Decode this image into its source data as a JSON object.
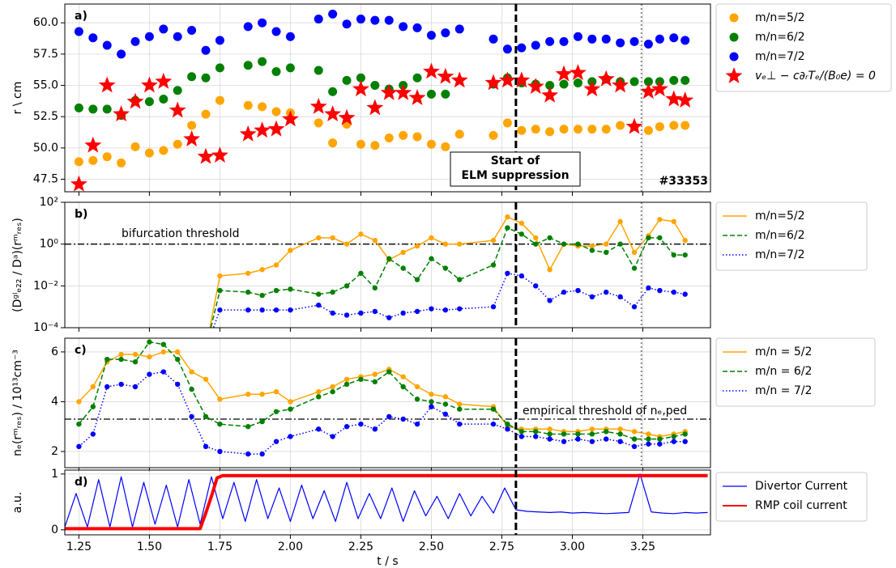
{
  "chart_data": [
    {
      "type": "scatter",
      "label": "a)",
      "ylabel": "r \\ cm",
      "xlim": [
        1.2,
        3.49
      ],
      "xticks": [
        1.25,
        {
          "value": 1.5,
          "label": "1.50"
        },
        1.75,
        {
          "value": 2,
          "label": "2.00"
        },
        2.25,
        {
          "value": 2.5,
          "label": "2.50"
        },
        2.75,
        {
          "value": 3,
          "label": "3.00"
        },
        3.25
      ],
      "ylim": [
        46.5,
        61.5
      ],
      "yticks": [
        47.5,
        {
          "value": 50,
          "label": "50.0"
        },
        52.5,
        {
          "value": 55,
          "label": "55.0"
        },
        57.5,
        {
          "value": 60,
          "label": "60.0"
        }
      ],
      "grid": true,
      "x": [
        1.25,
        1.3,
        1.35,
        1.4,
        1.45,
        1.5,
        1.55,
        1.6,
        1.65,
        1.7,
        1.75,
        1.85,
        1.9,
        1.95,
        2,
        2.1,
        2.15,
        2.2,
        2.25,
        2.3,
        2.35,
        2.4,
        2.45,
        2.5,
        2.55,
        2.6,
        2.72,
        2.77,
        2.82,
        2.87,
        2.92,
        2.97,
        3.02,
        3.07,
        3.12,
        3.17,
        3.22,
        3.27,
        3.31,
        3.36,
        3.4
      ],
      "series": [
        {
          "name": "m/n=5/2",
          "color": "#ffa500",
          "marker": "circle",
          "values": [
            48.9,
            49.0,
            49.3,
            48.8,
            50.1,
            49.6,
            49.8,
            50.3,
            51.8,
            52.7,
            53.8,
            53.4,
            53.3,
            52.9,
            52.8,
            52.0,
            50.4,
            51.9,
            50.3,
            50.2,
            50.8,
            51.0,
            50.9,
            50.3,
            50.1,
            51.1,
            51.0,
            52.0,
            51.4,
            51.5,
            51.3,
            51.5,
            51.5,
            51.5,
            51.5,
            51.8,
            51.7,
            51.4,
            51.7,
            51.8,
            51.8
          ]
        },
        {
          "name": "m/n=6/2",
          "color": "#008000",
          "marker": "circle",
          "values": [
            53.2,
            53.1,
            53.1,
            52.6,
            53.8,
            53.7,
            53.9,
            54.6,
            55.7,
            55.6,
            56.4,
            56.6,
            56.9,
            56.1,
            56.4,
            56.2,
            54.5,
            55.4,
            55.6,
            55.0,
            54.7,
            55.0,
            55.6,
            54.3,
            54.3,
            null,
            55.1,
            55.6,
            55.2,
            55.1,
            55.0,
            55.1,
            55.2,
            55.3,
            55.5,
            55.3,
            55.3,
            55.3,
            55.3,
            55.4,
            55.4
          ]
        },
        {
          "name": "m/n=7/2",
          "color": "#0000ff",
          "marker": "circle",
          "values": [
            59.3,
            58.8,
            58.2,
            57.5,
            58.5,
            58.9,
            59.5,
            58.9,
            59.4,
            57.8,
            58.6,
            59.7,
            60.0,
            59.3,
            58.9,
            60.3,
            60.7,
            59.9,
            60.3,
            60.2,
            60.2,
            59.7,
            59.6,
            59.0,
            59.2,
            59.5,
            58.7,
            57.9,
            58.0,
            58.2,
            58.5,
            58.5,
            58.9,
            58.7,
            58.7,
            58.4,
            58.5,
            58.3,
            58.7,
            58.8,
            58.6
          ]
        },
        {
          "name": "vₑ⊥ − c∂ᵣTₑ/(B₀e) = 0",
          "color": "#ff0000",
          "marker": "star",
          "values": [
            47.1,
            50.2,
            55.0,
            52.7,
            53.7,
            55.0,
            55.3,
            53.0,
            50.7,
            49.3,
            49.4,
            51.1,
            51.4,
            51.5,
            52.3,
            53.3,
            52.7,
            52.4,
            54.7,
            53.2,
            54.4,
            54.4,
            54.0,
            56.1,
            55.7,
            55.4,
            55.2,
            55.4,
            55.4,
            54.9,
            54.2,
            55.9,
            56.0,
            54.7,
            55.5,
            55.0,
            51.7,
            54.5,
            54.7,
            53.9,
            53.8
          ]
        }
      ],
      "vlines": [
        {
          "x": 2.8,
          "style": "dashed",
          "color": "#000000"
        },
        {
          "x": 3.245,
          "style": "dotted",
          "color": "#808080"
        }
      ],
      "box_text": [
        "Start of",
        "ELM suppression"
      ],
      "shot": "#33353"
    },
    {
      "type": "line",
      "label": "b)",
      "ylabel": "(Dᵍˡₑ₂₂ / Dᵃ)(rᵐᵣₑₛ)",
      "log": true,
      "xlim": [
        1.2,
        3.49
      ],
      "xticks": [
        1.25,
        {
          "value": 1.5,
          "label": "1.50"
        },
        1.75,
        {
          "value": 2,
          "label": "2.00"
        },
        2.25,
        {
          "value": 2.5,
          "label": "2.50"
        },
        2.75,
        {
          "value": 3,
          "label": "3.00"
        },
        3.25
      ],
      "ylim": [
        0.0001,
        100
      ],
      "yticks": [
        {
          "value": 100,
          "label": "10²"
        },
        {
          "value": 1,
          "label": "10⁰"
        },
        {
          "value": 0.01,
          "label": "10⁻²"
        },
        {
          "value": 0.0001,
          "label": "10⁻⁴"
        }
      ],
      "grid": true,
      "x": [
        1.7,
        1.75,
        1.85,
        1.9,
        1.95,
        2,
        2.1,
        2.15,
        2.2,
        2.25,
        2.3,
        2.35,
        2.4,
        2.45,
        2.5,
        2.55,
        2.6,
        2.72,
        2.77,
        2.82,
        2.87,
        2.92,
        2.97,
        3.02,
        3.07,
        3.12,
        3.17,
        3.22,
        3.27,
        3.31,
        3.36,
        3.4
      ],
      "series": [
        {
          "name": "m/n=5/2",
          "color": "#ffa500",
          "linestyle": "solid",
          "markers": true,
          "values": [
            1e-05,
            0.03,
            0.04,
            0.06,
            0.1,
            0.5,
            2,
            2,
            1.0,
            3,
            1.5,
            0.18,
            0.4,
            0.8,
            2,
            1,
            1,
            1.5,
            20,
            10,
            2,
            0.06,
            1,
            0.8,
            0.8,
            1,
            12,
            0.4,
            2.5,
            15,
            12,
            1.5
          ]
        },
        {
          "name": "m/n=6/2",
          "color": "#008000",
          "linestyle": "dashed",
          "markers": true,
          "values": [
            1e-05,
            0.006,
            0.005,
            0.0035,
            0.006,
            0.007,
            0.004,
            0.005,
            0.01,
            0.04,
            0.008,
            0.2,
            0.07,
            0.02,
            0.2,
            0.07,
            0.02,
            0.1,
            6,
            3,
            1,
            2,
            1,
            1,
            0.5,
            0.4,
            1,
            0.07,
            2,
            2,
            0.3,
            0.3
          ]
        },
        {
          "name": "m/n=7/2",
          "color": "#0000ff",
          "linestyle": "dotted",
          "markers": true,
          "values": [
            1e-05,
            0.0007,
            0.0007,
            0.0007,
            0.0007,
            0.0007,
            0.0012,
            0.0005,
            0.0004,
            0.0005,
            0.0006,
            0.0003,
            0.0005,
            0.0006,
            0.0008,
            0.0007,
            0.0008,
            0.001,
            0.04,
            0.03,
            0.01,
            0.002,
            0.005,
            0.006,
            0.003,
            0.005,
            0.003,
            0.001,
            0.008,
            0.006,
            0.005,
            0.004
          ]
        }
      ],
      "threshold": 1,
      "threshold_label": "bifurcation threshold",
      "vlines": [
        {
          "x": 2.8,
          "style": "dashed",
          "color": "#000000"
        },
        {
          "x": 3.245,
          "style": "dotted",
          "color": "#808080"
        }
      ]
    },
    {
      "type": "line",
      "label": "c)",
      "ylabel": "nₑ(rᵐᵣₑₛ) / 10¹³cm⁻³",
      "xlim": [
        1.2,
        3.49
      ],
      "xticks": [
        1.25,
        {
          "value": 1.5,
          "label": "1.50"
        },
        1.75,
        {
          "value": 2,
          "label": "2.00"
        },
        2.25,
        {
          "value": 2.5,
          "label": "2.50"
        },
        2.75,
        {
          "value": 3,
          "label": "3.00"
        },
        3.25
      ],
      "ylim": [
        1.35,
        6.55
      ],
      "yticks": [
        2,
        4,
        6
      ],
      "grid": true,
      "x": [
        1.25,
        1.3,
        1.35,
        1.4,
        1.45,
        1.5,
        1.55,
        1.6,
        1.65,
        1.7,
        1.75,
        1.85,
        1.9,
        1.95,
        2,
        2.1,
        2.15,
        2.2,
        2.25,
        2.3,
        2.35,
        2.4,
        2.45,
        2.5,
        2.55,
        2.6,
        2.72,
        2.77,
        2.82,
        2.87,
        2.92,
        2.97,
        3.02,
        3.07,
        3.12,
        3.17,
        3.22,
        3.27,
        3.31,
        3.36,
        3.4
      ],
      "series": [
        {
          "name": "m/n = 5/2",
          "color": "#ffa500",
          "linestyle": "solid",
          "markers": true,
          "values": [
            4.0,
            4.6,
            5.6,
            5.9,
            5.9,
            5.8,
            6.0,
            6.0,
            5.2,
            4.9,
            4.1,
            4.3,
            4.3,
            4.4,
            4.0,
            4.4,
            4.6,
            4.9,
            5.0,
            5.1,
            5.3,
            5.0,
            4.6,
            4.3,
            4.2,
            3.9,
            3.8,
            3.0,
            2.9,
            2.9,
            2.9,
            2.8,
            2.8,
            2.9,
            2.9,
            2.9,
            2.8,
            2.7,
            2.6,
            2.7,
            2.8
          ]
        },
        {
          "name": "m/n = 6/2",
          "color": "#008000",
          "linestyle": "dashed",
          "markers": true,
          "values": [
            3.1,
            3.8,
            5.7,
            5.7,
            5.6,
            6.4,
            6.3,
            5.7,
            4.5,
            3.4,
            3.1,
            3.0,
            3.2,
            3.6,
            3.7,
            4.2,
            4.4,
            4.7,
            4.9,
            4.8,
            5.2,
            4.6,
            4.1,
            4.0,
            3.9,
            3.7,
            3.7,
            3.1,
            2.8,
            2.8,
            2.7,
            2.7,
            2.7,
            2.7,
            2.8,
            2.7,
            2.5,
            2.5,
            2.5,
            2.6,
            2.7
          ]
        },
        {
          "name": "m/n = 7/2",
          "color": "#0000ff",
          "linestyle": "dotted",
          "markers": true,
          "values": [
            2.2,
            2.7,
            4.6,
            4.7,
            4.6,
            5.1,
            5.2,
            4.7,
            3.4,
            2.2,
            2.0,
            1.9,
            1.9,
            2.4,
            2.6,
            2.9,
            2.6,
            3.0,
            3.1,
            2.9,
            3.4,
            3.3,
            3.1,
            3.8,
            3.5,
            3.1,
            3.1,
            2.9,
            2.6,
            2.6,
            2.5,
            2.4,
            2.5,
            2.4,
            2.5,
            2.4,
            2.2,
            2.3,
            2.3,
            2.4,
            2.4
          ]
        }
      ],
      "threshold": 3.3,
      "threshold_label": "empirical threshold of nₑ,ped",
      "vlines": [
        {
          "x": 2.8,
          "style": "dashed",
          "color": "#000000"
        },
        {
          "x": 3.245,
          "style": "dotted",
          "color": "#808080"
        }
      ]
    },
    {
      "type": "line",
      "label": "d)",
      "ylabel": "a.u.",
      "xlabel": "t / s",
      "xlim": [
        1.2,
        3.49
      ],
      "xticks": [
        1.25,
        {
          "value": 1.5,
          "label": "1.50"
        },
        1.75,
        {
          "value": 2,
          "label": "2.00"
        },
        2.25,
        {
          "value": 2.5,
          "label": "2.50"
        },
        2.75,
        {
          "value": 3,
          "label": "3.00"
        },
        3.25
      ],
      "ylim": [
        -0.09,
        1.07
      ],
      "yticks": [
        0,
        1
      ],
      "grid": true,
      "series": [
        {
          "name": "Divertor Current",
          "color": "#0000ff",
          "linestyle": "solid",
          "markers": false,
          "linewidth": 1.2,
          "x": [
            1.2,
            1.24,
            1.28,
            1.32,
            1.36,
            1.4,
            1.44,
            1.48,
            1.52,
            1.56,
            1.6,
            1.64,
            1.68,
            1.72,
            1.76,
            1.8,
            1.84,
            1.88,
            1.92,
            1.96,
            2,
            2.04,
            2.08,
            2.12,
            2.16,
            2.2,
            2.24,
            2.28,
            2.32,
            2.36,
            2.4,
            2.44,
            2.48,
            2.52,
            2.56,
            2.6,
            2.64,
            2.68,
            2.72,
            2.76,
            2.8,
            2.84,
            2.88,
            2.92,
            2.96,
            3,
            3.04,
            3.08,
            3.12,
            3.16,
            3.2,
            3.24,
            3.28,
            3.32,
            3.36,
            3.4,
            3.44,
            3.48
          ],
          "values": [
            0.05,
            0.65,
            0.05,
            0.9,
            0.05,
            0.95,
            0.05,
            0.85,
            0.1,
            0.8,
            0.05,
            0.9,
            0.1,
            0.95,
            0.2,
            0.85,
            0.15,
            0.9,
            0.2,
            0.75,
            0.15,
            0.8,
            0.2,
            0.7,
            0.15,
            0.85,
            0.2,
            0.65,
            0.2,
            0.75,
            0.15,
            0.7,
            0.25,
            0.6,
            0.2,
            0.65,
            0.25,
            0.6,
            0.3,
            0.75,
            0.36,
            0.33,
            0.32,
            0.31,
            0.32,
            0.3,
            0.31,
            0.3,
            0.29,
            0.3,
            0.31,
            1.0,
            0.32,
            0.3,
            0.29,
            0.31,
            0.3,
            0.31
          ]
        },
        {
          "name": "RMP coil current",
          "color": "#ff0000",
          "linestyle": "solid",
          "markers": false,
          "linewidth": 4,
          "x": [
            1.2,
            1.68,
            1.7,
            1.72,
            1.74,
            1.76,
            3.48
          ],
          "values": [
            0.02,
            0.02,
            0.3,
            0.6,
            0.93,
            0.97,
            0.97
          ]
        }
      ],
      "vlines": [
        {
          "x": 2.8,
          "style": "dashed",
          "color": "#000000"
        }
      ]
    }
  ]
}
